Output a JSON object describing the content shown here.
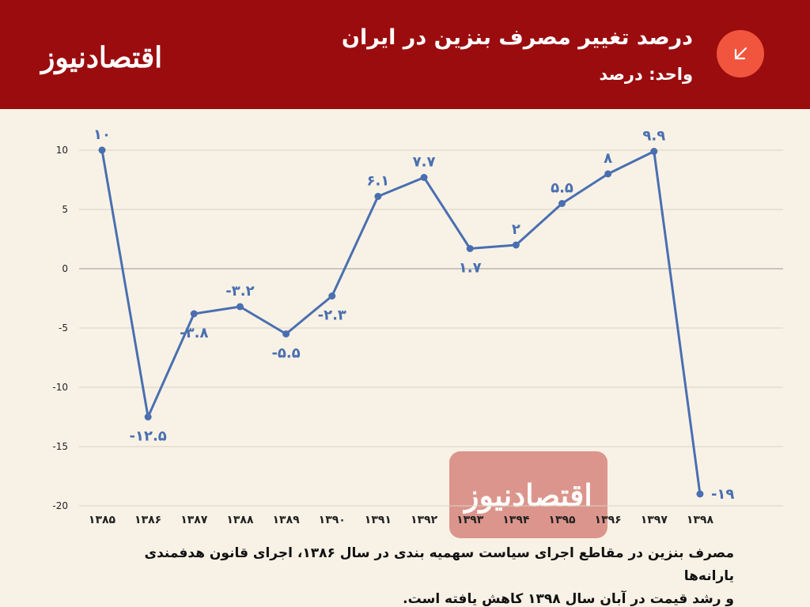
{
  "header": {
    "logo_text": "اقتصادنیوز",
    "title": "درصد تغییر مصرف بنزین در ایران",
    "subtitle": "واحد: درصد",
    "badge_icon": "arrow-down-left-icon"
  },
  "watermark": {
    "text": "اقتصادنیوز"
  },
  "caption": {
    "line1": "مصرف بنزین در مقاطع اجرای سیاست سهمیه بندی در سال ۱۳۸۶، اجرای قانون هدفمندی یارانه‌ها",
    "line2": "و رشد قیمت در آبان سال ۱۳۹۸ کاهش یافته است."
  },
  "colors": {
    "header_bg": "#9b0c0e",
    "background": "#f8f2e6",
    "line": "#4a6fb0",
    "badge": "#f1553e",
    "watermark": "#d98c83"
  },
  "chart_data": {
    "type": "line",
    "categories": [
      "۱۳۸۵",
      "۱۳۸۶",
      "۱۳۸۷",
      "۱۳۸۸",
      "۱۳۸۹",
      "۱۳۹۰",
      "۱۳۹۱",
      "۱۳۹۲",
      "۱۳۹۳",
      "۱۳۹۴",
      "۱۳۹۵",
      "۱۳۹۶",
      "۱۳۹۷",
      "۱۳۹۸"
    ],
    "series": [
      {
        "values": [
          10,
          -12.5,
          -3.8,
          -3.2,
          -5.5,
          -2.3,
          6.1,
          7.7,
          1.7,
          2,
          5.5,
          8,
          9.9,
          -19
        ],
        "labels": [
          "۱۰",
          "-۱۲.۵",
          "-۳.۸",
          "-۳.۲",
          "-۵.۵",
          "-۲.۳",
          "۶.۱",
          "۷.۷",
          "۱.۷",
          "۲",
          "۵.۵",
          "۸",
          "۹.۹",
          "-۱۹"
        ]
      }
    ],
    "y_ticks": [
      10,
      5,
      0,
      -5,
      -10,
      -15,
      -20
    ],
    "y_tick_labels": [
      "10",
      "5",
      "0",
      "-5",
      "-10",
      "-15",
      "-20"
    ],
    "ylim": [
      -20,
      10
    ],
    "grid": true,
    "legend": "none"
  }
}
